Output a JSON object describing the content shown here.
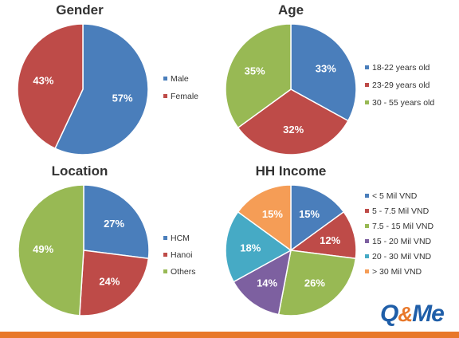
{
  "chart_data": [
    {
      "type": "pie",
      "title": "Gender",
      "categories": [
        "Male",
        "Female"
      ],
      "values": [
        57,
        43
      ],
      "colors": [
        "#4a7ebb",
        "#be4b48"
      ],
      "legend_position": "right"
    },
    {
      "type": "pie",
      "title": "Age",
      "categories": [
        "18-22 years old",
        "23-29 years old",
        "30 - 55 years old"
      ],
      "values": [
        33,
        32,
        35
      ],
      "colors": [
        "#4a7ebb",
        "#be4b48",
        "#98b954"
      ],
      "legend_position": "right"
    },
    {
      "type": "pie",
      "title": "Location",
      "categories": [
        "HCM",
        "Hanoi",
        "Others"
      ],
      "values": [
        27,
        24,
        49
      ],
      "colors": [
        "#4a7ebb",
        "#be4b48",
        "#98b954"
      ],
      "legend_position": "right"
    },
    {
      "type": "pie",
      "title": "HH Income",
      "categories": [
        "< 5 Mil VND",
        "5 - 7.5 Mil VND",
        "7.5 - 15 Mil VND",
        "15 - 20 Mil VND",
        "20 - 30 Mil VND",
        "> 30 Mil VND"
      ],
      "values": [
        15,
        12,
        26,
        14,
        18,
        15
      ],
      "colors": [
        "#4a7ebb",
        "#be4b48",
        "#98b954",
        "#7d60a0",
        "#46aac5",
        "#f59d56"
      ],
      "legend_position": "right"
    }
  ],
  "logo": {
    "q": "Q",
    "amp": "&",
    "me": "Me"
  }
}
